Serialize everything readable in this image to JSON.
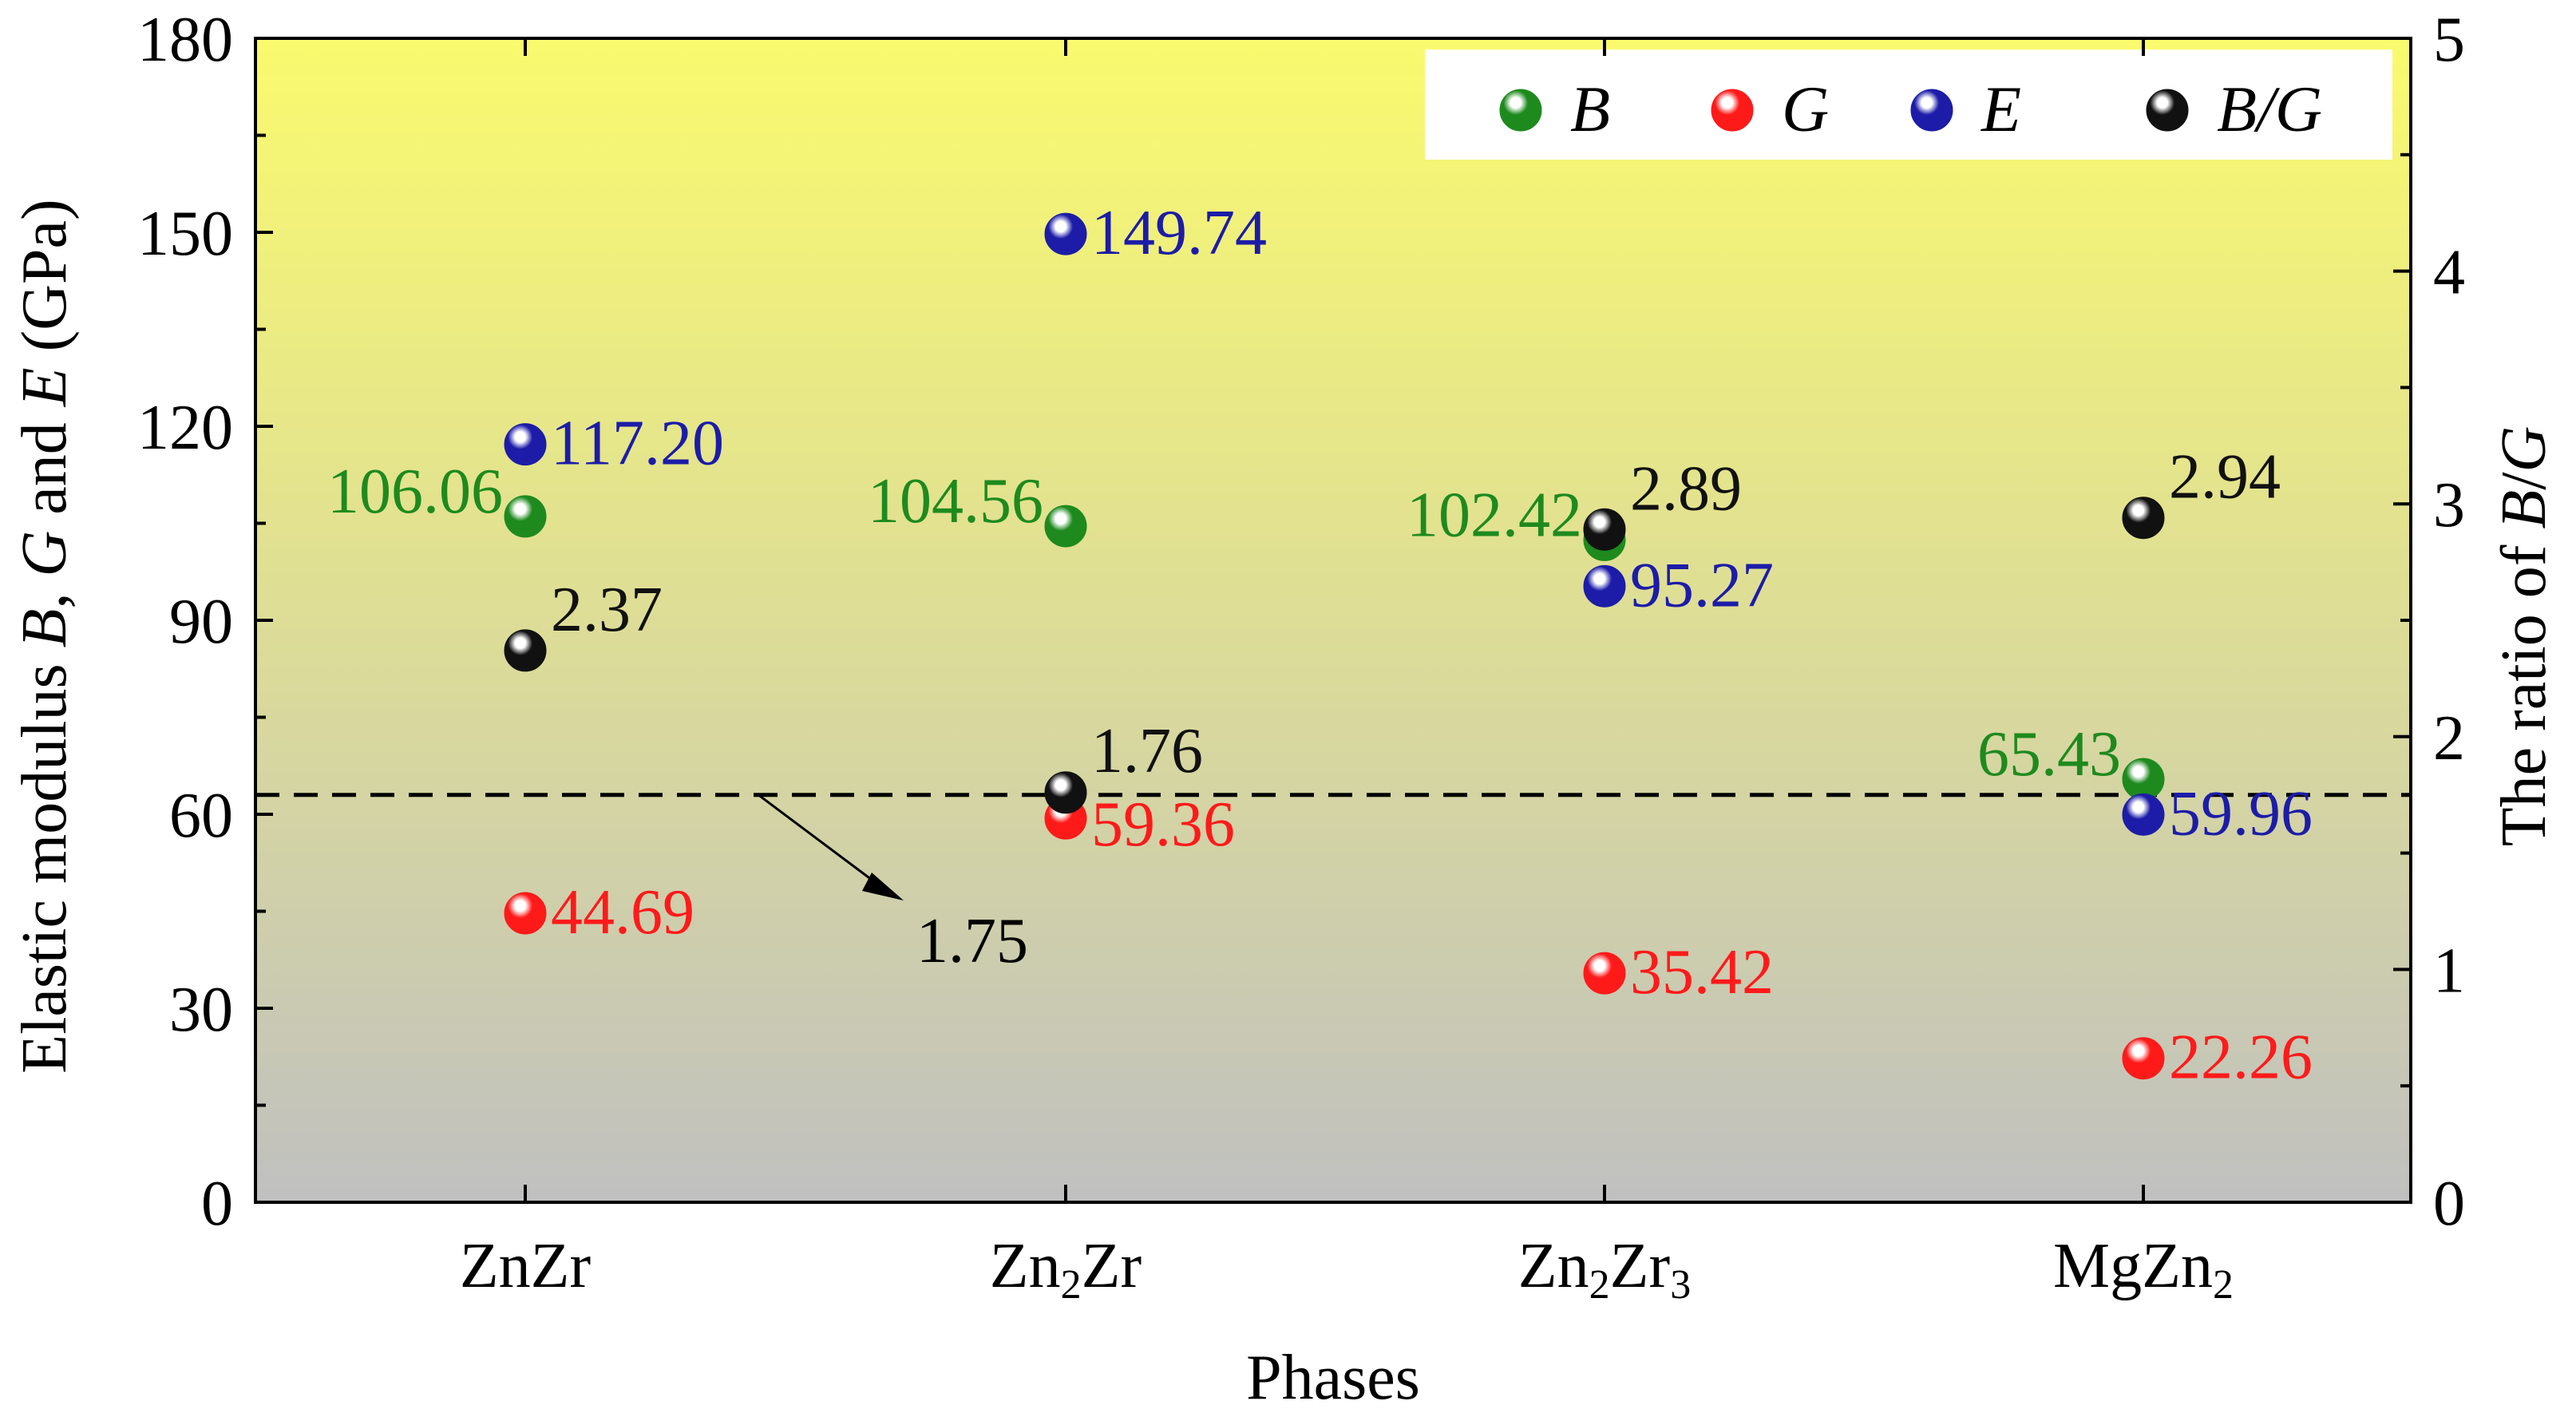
{
  "chart_data": {
    "type": "scatter",
    "categories": [
      "ZnZr",
      "Zn2Zr",
      "Zn2Zr3",
      "MgZn2"
    ],
    "category_labels": [
      {
        "base": "ZnZr",
        "parts": [
          [
            "ZnZr",
            false
          ]
        ]
      },
      {
        "base": "Zn2Zr",
        "parts": [
          [
            "Zn",
            false
          ],
          [
            "2",
            true
          ],
          [
            "Zr",
            false
          ]
        ]
      },
      {
        "base": "Zn2Zr3",
        "parts": [
          [
            "Zn",
            false
          ],
          [
            "2",
            true
          ],
          [
            "Zr",
            false
          ],
          [
            "3",
            true
          ]
        ]
      },
      {
        "base": "MgZn2",
        "parts": [
          [
            "MgZn",
            false
          ],
          [
            "2",
            true
          ]
        ]
      }
    ],
    "xlabel": "Phases",
    "ylabel_left": "Elastic modulus B, G and E (GPa)",
    "ylabel_left_parts": [
      [
        "Elastic modulus ",
        false
      ],
      [
        "B",
        true
      ],
      [
        ", ",
        false
      ],
      [
        "G",
        true
      ],
      [
        " and ",
        false
      ],
      [
        "E",
        true
      ],
      [
        " (GPa)",
        false
      ]
    ],
    "ylabel_right": "The ratio of B/G",
    "ylabel_right_parts": [
      [
        "The ratio of ",
        false
      ],
      [
        "B",
        true
      ],
      [
        "/",
        false
      ],
      [
        "G",
        true
      ]
    ],
    "ylim_left": [
      0,
      180
    ],
    "ylim_right": [
      0,
      5
    ],
    "yticks_left": [
      0,
      30,
      60,
      90,
      120,
      150,
      180
    ],
    "yticks_right": [
      0,
      1,
      2,
      3,
      4,
      5
    ],
    "series": [
      {
        "name": "B",
        "axis": "left",
        "color": "#1e8a1e",
        "values": [
          106.06,
          104.56,
          102.42,
          65.43
        ],
        "labels": [
          "106.06",
          "104.56",
          "102.42",
          "65.43"
        ]
      },
      {
        "name": "G",
        "axis": "left",
        "color": "#ff1a1a",
        "values": [
          44.69,
          59.36,
          35.42,
          22.26
        ],
        "labels": [
          "44.69",
          "59.36",
          "35.42",
          "22.26"
        ]
      },
      {
        "name": "E",
        "axis": "left",
        "color": "#1c1ca8",
        "values": [
          117.2,
          149.74,
          95.27,
          59.96
        ],
        "labels": [
          "117.20",
          "149.74",
          "95.27",
          "59.96"
        ]
      },
      {
        "name": "B/G",
        "axis": "right",
        "color": "#111111",
        "values": [
          2.37,
          1.76,
          2.89,
          2.94
        ],
        "labels": [
          "2.37",
          "1.76",
          "2.89",
          "2.94"
        ]
      }
    ],
    "reference_line": {
      "value": 1.75,
      "axis": "right",
      "style": "dashed",
      "label": "1.75"
    },
    "background_gradient": [
      "#fafa6e",
      "#c0c0c0"
    ],
    "legend": {
      "position": "top-right",
      "items": [
        "B",
        "G",
        "E",
        "B/G"
      ],
      "italic": true
    },
    "grid": false
  }
}
